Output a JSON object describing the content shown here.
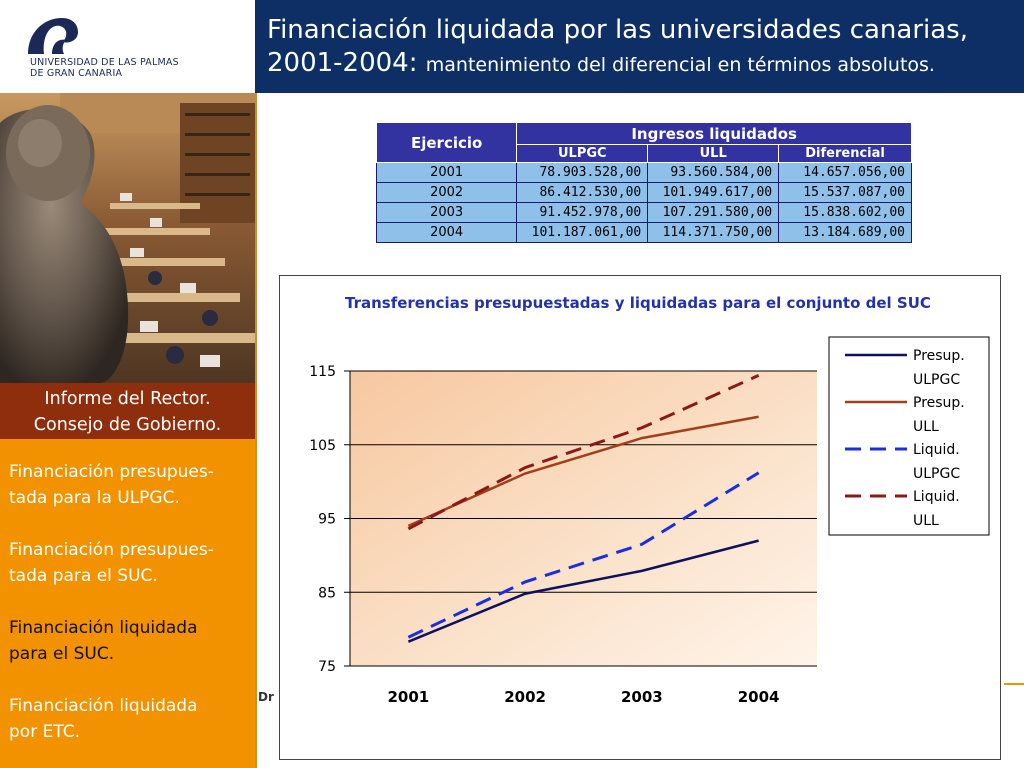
{
  "logo": {
    "line1": "UNIVERSIDAD DE LAS PALMAS",
    "line2": "DE GRAN CANARIA"
  },
  "title": {
    "line1": "Financiación liquidada por las universidades canarias,",
    "line2_main": "2001-2004:",
    "line2_sub": "mantenimiento del diferencial en términos absolutos."
  },
  "caption": {
    "line1": "Informe del Rector.",
    "line2": "Consejo de Gobierno."
  },
  "menu": {
    "items": [
      {
        "line1": "Financiación presupues-",
        "line2": "tada para la ULPGC."
      },
      {
        "line1": "Financiación presupues-",
        "line2": "tada para el SUC."
      },
      {
        "line1": "Financiación liquidada",
        "line2": "para el SUC."
      },
      {
        "line1": "Financiación liquidada",
        "line2": "por ETC."
      }
    ],
    "active_index": 2
  },
  "footer": {
    "text": "Dr"
  },
  "table": {
    "header_year": "Ejercicio",
    "header_group": "Ingresos liquidados",
    "columns": [
      "ULPGC",
      "ULL",
      "Diferencial"
    ],
    "rows": [
      {
        "year": "2001",
        "ulpgc": "78.903.528,00",
        "ull": "93.560.584,00",
        "dif": "14.657.056,00"
      },
      {
        "year": "2002",
        "ulpgc": "86.412.530,00",
        "ull": "101.949.617,00",
        "dif": "15.537.087,00"
      },
      {
        "year": "2003",
        "ulpgc": "91.452.978,00",
        "ull": "107.291.580,00",
        "dif": "15.838.602,00"
      },
      {
        "year": "2004",
        "ulpgc": "101.187.061,00",
        "ull": "114.371.750,00",
        "dif": "13.184.689,00"
      }
    ]
  },
  "chart_data": {
    "type": "line",
    "title": "Transferencias presupuestadas y liquidadas para el conjunto del SUC",
    "categories": [
      "2001",
      "2002",
      "2003",
      "2004"
    ],
    "yticks": [
      75,
      85,
      95,
      105,
      115
    ],
    "ylim": [
      75,
      115
    ],
    "grid": true,
    "legend_position": "right",
    "series": [
      {
        "name": "Presup. ULPGC",
        "values": [
          78.3,
          84.8,
          87.9,
          92.0
        ],
        "color": "#101060",
        "dash": "solid"
      },
      {
        "name": "Presup. ULL",
        "values": [
          94.0,
          101.1,
          105.9,
          108.8
        ],
        "color": "#a0401a",
        "dash": "solid"
      },
      {
        "name": "Liquid. ULPGC",
        "values": [
          78.9,
          86.4,
          91.5,
          101.2
        ],
        "color": "#1a2ee0",
        "dash": "dashed"
      },
      {
        "name": "Liquid. ULL",
        "values": [
          93.6,
          101.9,
          107.3,
          114.4
        ],
        "color": "#8a1a1a",
        "dash": "dashed"
      }
    ],
    "legend": [
      {
        "line1": "Presup.",
        "line2": "ULPGC"
      },
      {
        "line1": "Presup.",
        "line2": "ULL"
      },
      {
        "line1": "Liquid.",
        "line2": "ULPGC"
      },
      {
        "line1": "Liquid.",
        "line2": "ULL"
      }
    ]
  }
}
